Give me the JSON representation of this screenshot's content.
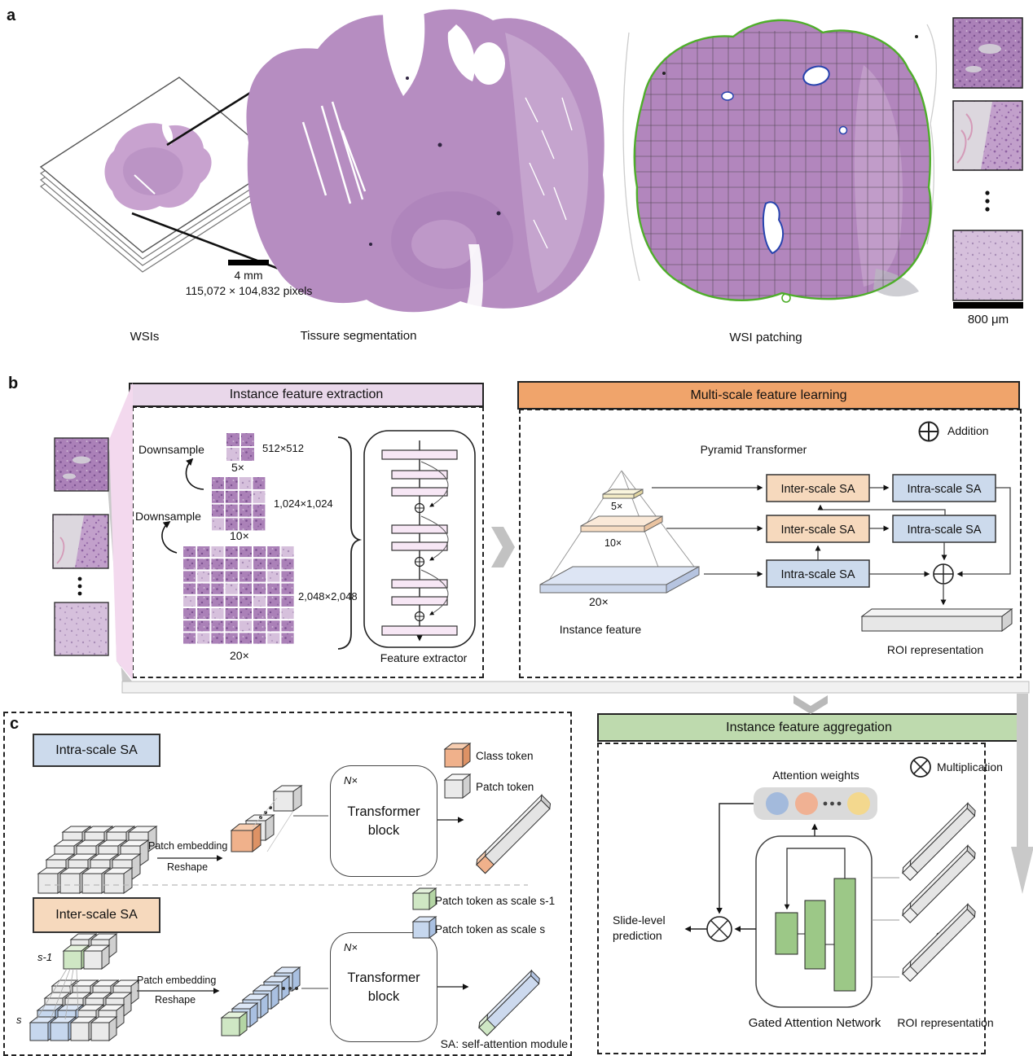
{
  "panels": {
    "a": "a",
    "b": "b",
    "c": "c"
  },
  "panel_a": {
    "wsis_label": "WSIs",
    "segmentation_label": "Tissure segmentation",
    "patching_label": "WSI patching",
    "scale_mm": "4 mm",
    "resolution": "115,072 × 104,832 pixels",
    "scale_um": "800 μm"
  },
  "panel_b": {
    "extraction": {
      "header": "Instance feature extraction",
      "downsample_top": "Downsample",
      "downsample_bottom": "Downsample",
      "size_512": "512×512",
      "size_1024": "1,024×1,024",
      "size_2048": "2,048×2,048",
      "mag_5": "5×",
      "mag_10": "10×",
      "mag_20": "20×",
      "feature_extractor": "Feature extractor"
    },
    "multiscale": {
      "header": "Multi-scale feature learning",
      "addition_label": "Addition",
      "pyramid_title": "Pyramid Transformer",
      "mag_5": "5×",
      "mag_10": "10×",
      "mag_20": "20×",
      "instance_feature": "Instance feature",
      "inter_sa": "Inter-scale SA",
      "intra_sa": "Intra-scale SA",
      "roi": "ROI representation"
    }
  },
  "panel_c": {
    "intra": {
      "header": "Intra-scale SA",
      "patch_embedding": "Patch embedding",
      "reshape": "Reshape",
      "n_times": "N×",
      "transformer_block": "Transformer block"
    },
    "inter": {
      "header": "Inter-scale SA",
      "s_minus_1": "s-1",
      "s": "s",
      "patch_embedding": "Patch embedding",
      "reshape": "Reshape",
      "n_times": "N×",
      "transformer_block": "Transformer block"
    },
    "legend": {
      "class_token": "Class token",
      "patch_token": "Patch token",
      "patch_token_s1": "Patch token as scale s-1",
      "patch_token_s": "Patch token as scale s"
    },
    "sa_note": "SA: self-attention module",
    "aggregation": {
      "header": "Instance feature aggregation",
      "multiplication_label": "Multiplication",
      "attention_weights": "Attention weights",
      "slide_level_line1": "Slide-level",
      "slide_level_line2": "prediction",
      "gated_attention_network": "Gated Attention Network",
      "roi": "ROI representation"
    }
  },
  "colors": {
    "extraction_header": "#e9d7ea",
    "multiscale_header": "#f0a46b",
    "aggregation_header": "#bedaae",
    "intra_sa_box": "#ccdaec",
    "inter_sa_box": "#f6d9bd",
    "gan_bar": "#9cc887",
    "tissue_purple": "#b68dc1",
    "segmentation_contour_green": "#4fae2b",
    "annotation_blue": "#2743ae"
  }
}
